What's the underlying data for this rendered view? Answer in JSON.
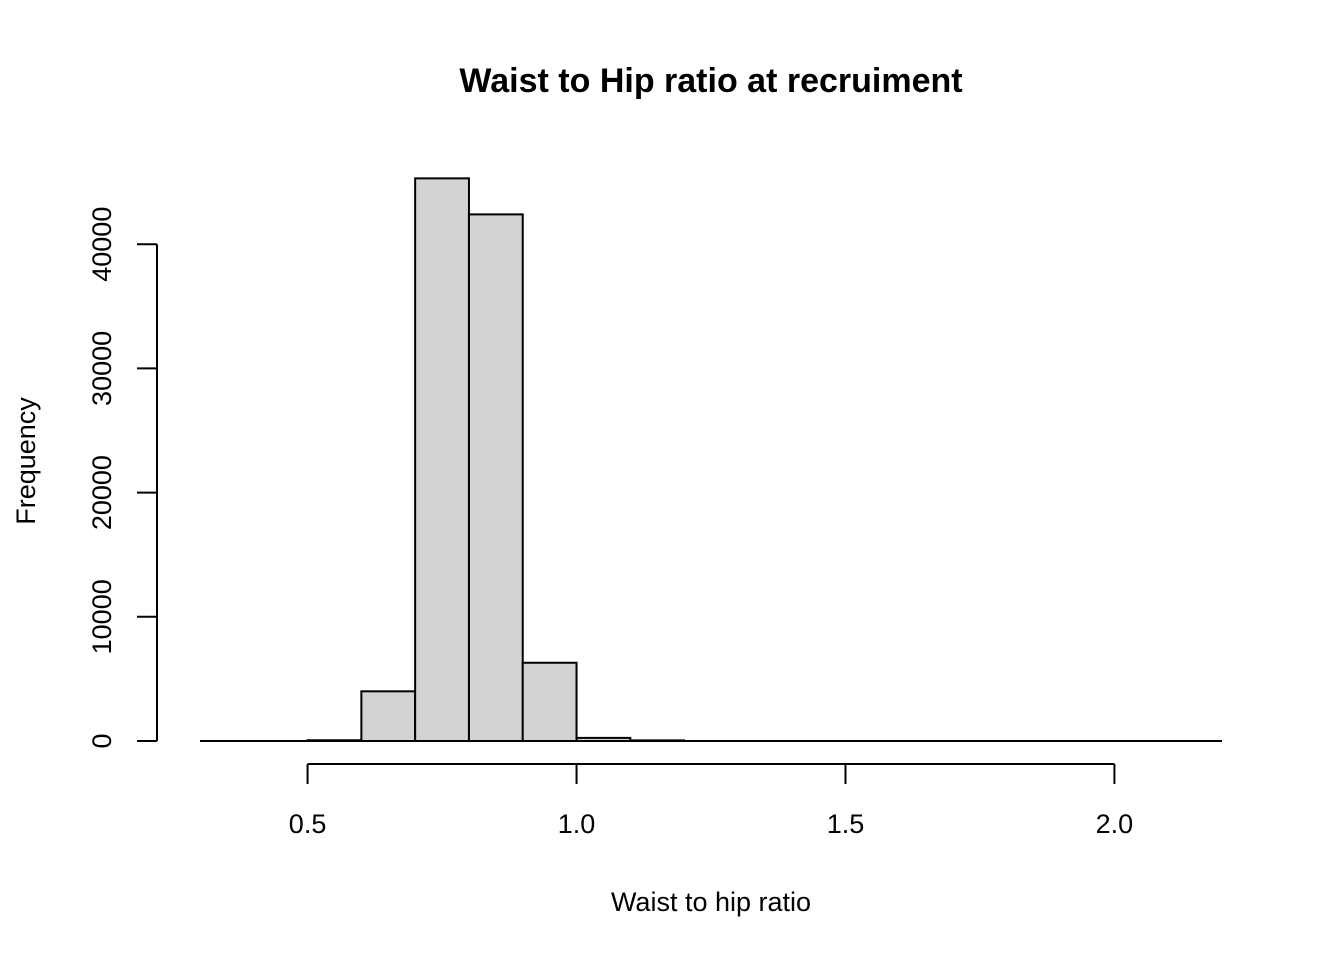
{
  "chart_data": {
    "type": "bar",
    "title": "Waist to Hip ratio at recruiment",
    "xlabel": "Waist to hip ratio",
    "ylabel": "Frequency",
    "xlim": [
      0.3,
      2.2
    ],
    "ylim": [
      0,
      45000
    ],
    "x_ticks": [
      0.5,
      1.0,
      1.5,
      2.0
    ],
    "x_tick_labels": [
      "0.5",
      "1.0",
      "1.5",
      "2.0"
    ],
    "y_ticks": [
      0,
      10000,
      20000,
      30000,
      40000
    ],
    "y_tick_labels": [
      "0",
      "10000",
      "20000",
      "30000",
      "40000"
    ],
    "bins": [
      {
        "x0": 0.3,
        "x1": 0.4,
        "value": 0
      },
      {
        "x0": 0.4,
        "x1": 0.5,
        "value": 0
      },
      {
        "x0": 0.5,
        "x1": 0.6,
        "value": 60
      },
      {
        "x0": 0.6,
        "x1": 0.7,
        "value": 4000
      },
      {
        "x0": 0.7,
        "x1": 0.8,
        "value": 45300
      },
      {
        "x0": 0.8,
        "x1": 0.9,
        "value": 42400
      },
      {
        "x0": 0.9,
        "x1": 1.0,
        "value": 6300
      },
      {
        "x0": 1.0,
        "x1": 1.1,
        "value": 250
      },
      {
        "x0": 1.1,
        "x1": 1.2,
        "value": 50
      },
      {
        "x0": 1.2,
        "x1": 1.3,
        "value": 0
      },
      {
        "x0": 1.3,
        "x1": 1.4,
        "value": 0
      },
      {
        "x0": 1.4,
        "x1": 1.5,
        "value": 0
      },
      {
        "x0": 1.5,
        "x1": 1.6,
        "value": 0
      },
      {
        "x0": 1.6,
        "x1": 1.7,
        "value": 0
      },
      {
        "x0": 1.7,
        "x1": 1.8,
        "value": 0
      },
      {
        "x0": 1.8,
        "x1": 1.9,
        "value": 0
      },
      {
        "x0": 1.9,
        "x1": 2.0,
        "value": 0
      },
      {
        "x0": 2.0,
        "x1": 2.1,
        "value": 0
      },
      {
        "x0": 2.1,
        "x1": 2.2,
        "value": 0
      }
    ],
    "colors": {
      "bar_fill": "#d3d3d3",
      "bar_stroke": "#000000"
    },
    "grid": false
  }
}
